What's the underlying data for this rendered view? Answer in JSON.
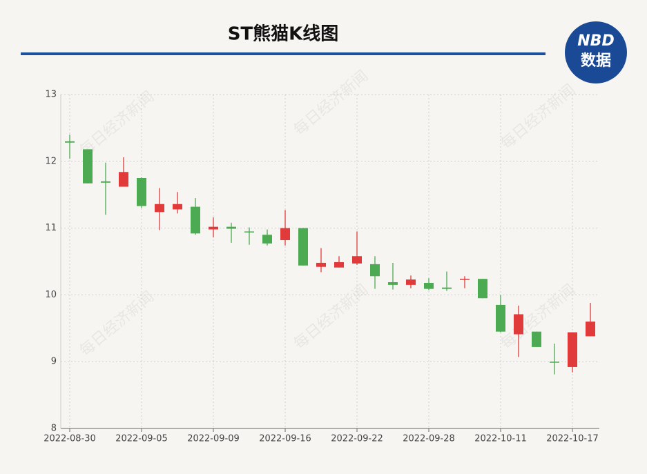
{
  "chart_data": {
    "type": "candlestick",
    "title": "ST熊猫K线图",
    "logo": {
      "top": "NBD",
      "bottom": "数据"
    },
    "watermark": "每日经济新闻",
    "categories": [
      "2022-08-30",
      null,
      null,
      null,
      "2022-09-05",
      null,
      null,
      null,
      "2022-09-09",
      null,
      null,
      null,
      "2022-09-16",
      null,
      null,
      null,
      "2022-09-22",
      null,
      null,
      null,
      "2022-09-28",
      null,
      null,
      null,
      "2022-10-11",
      null,
      null,
      null,
      "2022-10-17",
      null
    ],
    "open": [
      12.3,
      12.18,
      11.7,
      11.62,
      11.75,
      11.24,
      11.28,
      11.32,
      10.98,
      11.02,
      10.95,
      10.9,
      10.82,
      11.0,
      10.42,
      10.41,
      10.47,
      10.46,
      10.19,
      10.15,
      10.18,
      10.11,
      10.23,
      10.24,
      9.85,
      9.41,
      9.45,
      9.0,
      8.92,
      9.38
    ],
    "high": [
      12.4,
      12.18,
      11.98,
      12.06,
      11.76,
      11.6,
      11.54,
      11.45,
      11.16,
      11.08,
      11.01,
      10.98,
      11.27,
      11.0,
      10.7,
      10.58,
      10.95,
      10.58,
      10.48,
      10.29,
      10.25,
      10.35,
      10.28,
      10.24,
      10.0,
      9.84,
      9.45,
      9.27,
      9.44,
      9.88
    ],
    "low": [
      12.04,
      11.67,
      11.2,
      11.62,
      11.3,
      10.97,
      11.22,
      10.9,
      10.86,
      10.78,
      10.75,
      10.74,
      10.74,
      10.44,
      10.34,
      10.41,
      10.45,
      10.09,
      10.08,
      10.1,
      10.07,
      10.06,
      10.1,
      9.95,
      9.44,
      9.07,
      9.22,
      8.81,
      8.84,
      9.38
    ],
    "close": [
      12.28,
      11.67,
      11.68,
      11.84,
      11.33,
      11.36,
      11.36,
      10.92,
      11.02,
      10.99,
      10.94,
      10.77,
      11.0,
      10.44,
      10.48,
      10.49,
      10.58,
      10.28,
      10.15,
      10.23,
      10.09,
      10.09,
      10.24,
      9.95,
      9.45,
      9.71,
      9.22,
      8.99,
      9.44,
      9.6
    ],
    "up_color": "#e03a3a",
    "down_color": "#4caa52",
    "ylim": [
      8,
      13
    ],
    "yticks": [
      8,
      9,
      10,
      11,
      12,
      13
    ],
    "grid": true
  }
}
